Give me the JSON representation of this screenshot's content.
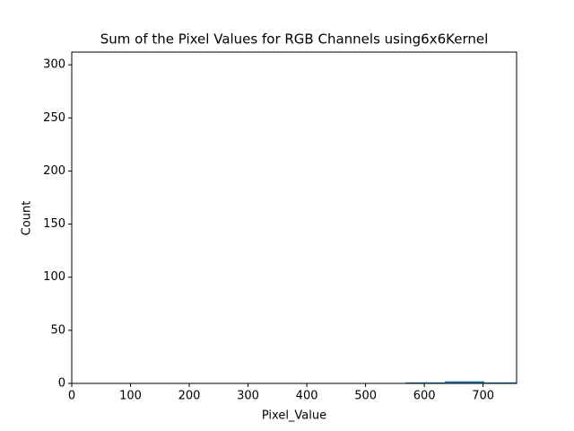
{
  "chart_data": {
    "type": "histogram",
    "title": "Sum of the Pixel Values for RGB Channels using6x6Kernel",
    "x_label": "Pixel_Value",
    "y_label": "Count",
    "bins": [
      568,
      635,
      702,
      757
    ],
    "values": [
      1,
      2,
      1
    ],
    "color": "#1f77b4",
    "xlim": [
      0,
      757
    ],
    "xticks": [
      0,
      100,
      200,
      300,
      400,
      500,
      600,
      700
    ],
    "ylim": [
      0,
      312
    ],
    "yticks": [
      0,
      50,
      100,
      150,
      200,
      250,
      300
    ],
    "grid": false
  }
}
